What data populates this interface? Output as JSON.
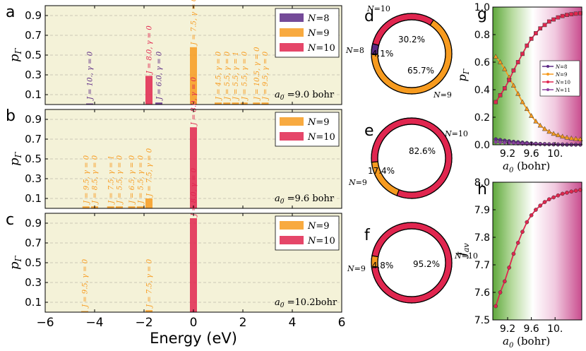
{
  "colors": {
    "N8": "#5c2a86",
    "N9": "#f79b1f",
    "N10": "#e0264f",
    "N11": "#8a3fa0",
    "panel_bg": "#f4f2d8"
  },
  "chart_data": [
    {
      "id": "a",
      "type": "bar",
      "panel_letter": "a",
      "ylabel": "pΓ",
      "ylim": [
        0,
        1.0
      ],
      "yticks": [
        0.1,
        0.3,
        0.5,
        0.7,
        0.9
      ],
      "xlim": [
        -6,
        6
      ],
      "annotation_lhs": "a0",
      "annotation_rhs": "=9.0 bohr",
      "legend": [
        "N=8",
        "N=9",
        "N=10"
      ],
      "bars": [
        {
          "x": -4.2,
          "y": 0.01,
          "series": "N8",
          "label": "J = 10., γ = 0"
        },
        {
          "x": -1.8,
          "y": 0.29,
          "series": "N10",
          "label": "J = 8.0, γ = 0"
        },
        {
          "x": -1.4,
          "y": 0.02,
          "series": "N8",
          "label": "J = 6.0, γ = 0"
        },
        {
          "x": 0.0,
          "y": 0.58,
          "series": "N9",
          "label": "J = 7.5, γ = 0"
        },
        {
          "x": 1.0,
          "y": 0.02,
          "series": "N9",
          "label": "J = 4.5, γ = 0"
        },
        {
          "x": 1.35,
          "y": 0.02,
          "series": "N9",
          "label": "J = 5.5, γ = 0"
        },
        {
          "x": 1.7,
          "y": 0.02,
          "series": "N9",
          "label": "J = 5.5, γ = 1"
        },
        {
          "x": 2.05,
          "y": 0.02,
          "series": "N9",
          "label": "J = 5.5, γ = 0"
        },
        {
          "x": 2.55,
          "y": 0.02,
          "series": "N9",
          "label": "J = 10.5, γ = 0"
        },
        {
          "x": 2.9,
          "y": 0.02,
          "series": "N9",
          "label": "J = 9.5, γ = 0"
        }
      ]
    },
    {
      "id": "b",
      "type": "bar",
      "panel_letter": "b",
      "ylabel": "pΓ",
      "ylim": [
        0,
        1.0
      ],
      "yticks": [
        0.1,
        0.3,
        0.5,
        0.7,
        0.9
      ],
      "xlim": [
        -6,
        6
      ],
      "annotation_lhs": "a0",
      "annotation_rhs": "=9.6 bohr",
      "legend": [
        "N=9",
        "N=10"
      ],
      "bars": [
        {
          "x": -4.35,
          "y": 0.02,
          "series": "N9",
          "label": "J = 9.5, γ = 0"
        },
        {
          "x": -4.0,
          "y": 0.02,
          "series": "N9",
          "label": "J = 8.5, γ = 0"
        },
        {
          "x": -3.35,
          "y": 0.02,
          "series": "N9",
          "label": "J = 7.5, γ = 1"
        },
        {
          "x": -3.0,
          "y": 0.02,
          "series": "N9",
          "label": "J = 5.5, γ = 0"
        },
        {
          "x": -2.5,
          "y": 0.02,
          "series": "N9",
          "label": "J = 6.5, γ = 0"
        },
        {
          "x": -2.15,
          "y": 0.02,
          "series": "N9",
          "label": "J = 5.5, γ = 0"
        },
        {
          "x": -1.8,
          "y": 0.1,
          "series": "N9",
          "label": "J = 7.5, γ = 0"
        },
        {
          "x": 0.0,
          "y": 0.82,
          "series": "N10",
          "label": "J = 8.0, γ = 0"
        }
      ]
    },
    {
      "id": "c",
      "type": "bar",
      "panel_letter": "c",
      "ylabel": "pΓ",
      "ylim": [
        0,
        1.0
      ],
      "yticks": [
        0.1,
        0.3,
        0.5,
        0.7,
        0.9
      ],
      "xlim": [
        -6,
        6
      ],
      "xticks": [
        -6,
        -4,
        -2,
        0,
        2,
        4,
        6
      ],
      "xlabel": "Energy (eV)",
      "annotation_lhs": "a0",
      "annotation_rhs": "=10.2bohr",
      "legend": [
        "N=9",
        "N=10"
      ],
      "bars": [
        {
          "x": -4.4,
          "y": 0.01,
          "series": "N9",
          "label": "J = 9.5, γ = 0"
        },
        {
          "x": -1.8,
          "y": 0.02,
          "series": "N9",
          "label": "J = 7.5, γ = 0"
        },
        {
          "x": 0.0,
          "y": 0.95,
          "series": "N10",
          "label": "J = 8.0, γ = 0"
        }
      ]
    },
    {
      "id": "d",
      "type": "pie",
      "panel_letter": "d",
      "slices": [
        {
          "series": "N8",
          "label": "N=8",
          "value": 4.1,
          "pct": "4.1%"
        },
        {
          "series": "N9",
          "label": "N=9",
          "value": 65.7,
          "pct": "65.7%"
        },
        {
          "series": "N10",
          "label": "N=10",
          "value": 30.2,
          "pct": "30.2%"
        }
      ]
    },
    {
      "id": "e",
      "type": "pie",
      "panel_letter": "e",
      "slices": [
        {
          "series": "N9",
          "label": "N=9",
          "value": 17.4,
          "pct": "17.4%"
        },
        {
          "series": "N10",
          "label": "N=10",
          "value": 82.6,
          "pct": "82.6%"
        }
      ]
    },
    {
      "id": "f",
      "type": "pie",
      "panel_letter": "f",
      "slices": [
        {
          "series": "N9",
          "label": "N=9",
          "value": 4.8,
          "pct": "4.8%"
        },
        {
          "series": "N10",
          "label": "N=10",
          "value": 95.2,
          "pct": "95.2%"
        }
      ]
    },
    {
      "id": "g",
      "type": "line",
      "panel_letter": "g",
      "ylabel": "pΓ",
      "xlabel": "a0 (bohr)",
      "xlim": [
        8.95,
        10.45
      ],
      "ylim": [
        0,
        1.0
      ],
      "xticks": [
        "9.2",
        "9.6",
        "10."
      ],
      "xtick_values": [
        9.2,
        9.6,
        10.0
      ],
      "yticks": [
        "0.0",
        "0.2",
        "0.4",
        "0.6",
        "0.8",
        "1.0"
      ],
      "x": [
        9.0,
        9.075,
        9.15,
        9.225,
        9.3,
        9.375,
        9.45,
        9.525,
        9.6,
        9.675,
        9.75,
        9.825,
        9.9,
        9.975,
        10.05,
        10.125,
        10.2,
        10.275,
        10.35,
        10.425
      ],
      "series": [
        {
          "name": "N=8",
          "key": "N8",
          "marker": "circle",
          "values": [
            0.04,
            0.035,
            0.03,
            0.026,
            0.022,
            0.019,
            0.016,
            0.013,
            0.01,
            0.008,
            0.006,
            0.005,
            0.004,
            0.003,
            0.002,
            0.002,
            0.001,
            0.001,
            0.001,
            0.001
          ]
        },
        {
          "name": "N=9",
          "key": "N9",
          "marker": "triangle",
          "values": [
            0.64,
            0.6,
            0.55,
            0.49,
            0.43,
            0.37,
            0.31,
            0.26,
            0.21,
            0.17,
            0.14,
            0.115,
            0.095,
            0.08,
            0.07,
            0.06,
            0.052,
            0.047,
            0.043,
            0.04
          ]
        },
        {
          "name": "N=10",
          "key": "N10",
          "marker": "square",
          "values": [
            0.31,
            0.36,
            0.41,
            0.47,
            0.54,
            0.6,
            0.66,
            0.72,
            0.77,
            0.81,
            0.845,
            0.87,
            0.895,
            0.91,
            0.925,
            0.935,
            0.943,
            0.948,
            0.952,
            0.955
          ]
        },
        {
          "name": "N=11",
          "key": "N11",
          "marker": "diamond",
          "values": [
            0.02,
            0.018,
            0.016,
            0.014,
            0.012,
            0.01,
            0.008,
            0.007,
            0.006,
            0.005,
            0.004,
            0.004,
            0.003,
            0.003,
            0.002,
            0.002,
            0.002,
            0.001,
            0.001,
            0.001
          ]
        }
      ]
    },
    {
      "id": "h",
      "type": "line",
      "panel_letter": "h",
      "ylabel": "Jav",
      "xlabel": "a0 (bohr)",
      "xlim": [
        8.95,
        10.45
      ],
      "ylim": [
        7.5,
        8.0
      ],
      "xticks": [
        "9.2",
        "9.6",
        "10."
      ],
      "xtick_values": [
        9.2,
        9.6,
        10.0
      ],
      "yticks": [
        "7.5",
        "7.6",
        "7.7",
        "7.8",
        "7.9",
        "8.0"
      ],
      "x": [
        9.0,
        9.075,
        9.15,
        9.225,
        9.3,
        9.375,
        9.45,
        9.525,
        9.6,
        9.675,
        9.75,
        9.825,
        9.9,
        9.975,
        10.05,
        10.125,
        10.2,
        10.275,
        10.35,
        10.425
      ],
      "series": [
        {
          "key": "N10",
          "marker": "circle",
          "values": [
            7.55,
            7.6,
            7.64,
            7.69,
            7.74,
            7.78,
            7.82,
            7.855,
            7.88,
            7.9,
            7.915,
            7.928,
            7.938,
            7.945,
            7.952,
            7.958,
            7.962,
            7.966,
            7.969,
            7.972
          ]
        }
      ]
    }
  ]
}
